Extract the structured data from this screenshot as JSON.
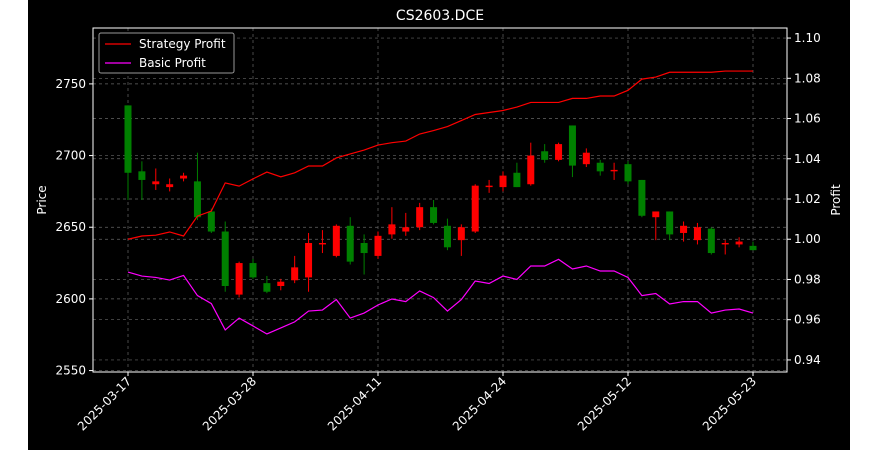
{
  "chart_data": {
    "type": "candlestick",
    "title": "CS2603.DCE",
    "y_label": "Price",
    "y2_label": "Profit",
    "categories": [
      "2025-03-17",
      null,
      null,
      null,
      null,
      null,
      null,
      null,
      null,
      "2025-03-28",
      null,
      null,
      null,
      null,
      null,
      null,
      null,
      null,
      "2025-04-11",
      null,
      null,
      null,
      null,
      null,
      null,
      null,
      null,
      "2025-04-24",
      null,
      null,
      null,
      null,
      null,
      null,
      null,
      null,
      "2025-05-12",
      null,
      null,
      null,
      null,
      null,
      null,
      null,
      null,
      "2025-05-23"
    ],
    "up_color": "#ff0000",
    "down_color": "#008000",
    "open": [
      2735,
      2689,
      2680,
      2678,
      2684,
      2682,
      2661,
      2647,
      2603,
      2625,
      2611,
      2609,
      2613,
      2615,
      2638,
      2630,
      2651,
      2639,
      2630,
      2645,
      2647,
      2650,
      2664,
      2651,
      2641,
      2647,
      2678,
      2678,
      2688,
      2680,
      2703,
      2697,
      2721,
      2694,
      2695,
      2689,
      2694,
      2683,
      2657,
      2661,
      2646,
      2641,
      2649,
      2638,
      2638,
      2637
    ],
    "high": [
      2735,
      2696,
      2691,
      2684,
      2688,
      2702,
      2663,
      2654,
      2626,
      2628,
      2616,
      2614,
      2630,
      2646,
      2648,
      2652,
      2657,
      2645,
      2647,
      2664,
      2660,
      2667,
      2669,
      2656,
      2652,
      2680,
      2683,
      2689,
      2695,
      2709,
      2708,
      2709,
      2721,
      2705,
      2697,
      2695,
      2696,
      2683,
      2661,
      2661,
      2654,
      2653,
      2650,
      2641,
      2643,
      2640
    ],
    "low": [
      2669,
      2669,
      2676,
      2675,
      2682,
      2655,
      2646,
      2605,
      2601,
      2614,
      2604,
      2606,
      2611,
      2605,
      2632,
      2629,
      2624,
      2617,
      2628,
      2642,
      2644,
      2648,
      2652,
      2634,
      2630,
      2646,
      2674,
      2675,
      2678,
      2679,
      2695,
      2696,
      2685,
      2692,
      2686,
      2683,
      2680,
      2657,
      2641,
      2641,
      2640,
      2638,
      2631,
      2631,
      2636,
      2634
    ],
    "close": [
      2688,
      2683,
      2682,
      2680,
      2686,
      2657,
      2647,
      2609,
      2625,
      2615,
      2605,
      2612,
      2622,
      2639,
      2639,
      2651,
      2626,
      2632,
      2644,
      2652,
      2650,
      2664,
      2653,
      2636,
      2650,
      2679,
      2679,
      2686,
      2678,
      2700,
      2697,
      2708,
      2693,
      2702,
      2689,
      2690,
      2682,
      2658,
      2661,
      2645,
      2651,
      2650,
      2632,
      2639,
      2640,
      2634
    ],
    "series": [
      {
        "name": "Strategy Profit",
        "color": "#ff0000",
        "axis": "y2",
        "values": [
          1.0,
          1.0016,
          1.002,
          1.0036,
          1.0016,
          1.0115,
          1.014,
          1.028,
          1.0264,
          1.03,
          1.0334,
          1.031,
          1.033,
          1.0364,
          1.0364,
          1.0404,
          1.0424,
          1.0443,
          1.0468,
          1.048,
          1.0488,
          1.0523,
          1.054,
          1.056,
          1.059,
          1.062,
          1.063,
          1.064,
          1.0657,
          1.068,
          1.068,
          1.068,
          1.07,
          1.07,
          1.0712,
          1.0712,
          1.074,
          1.0796,
          1.0806,
          1.083,
          1.083,
          1.083,
          1.083,
          1.0836,
          1.0836,
          1.0836
        ]
      },
      {
        "name": "Basic Profit",
        "color": "#ff00ff",
        "axis": "y2",
        "values": [
          0.9837,
          0.9817,
          0.981,
          0.9797,
          0.982,
          0.972,
          0.968,
          0.9549,
          0.9608,
          0.9569,
          0.9529,
          0.9559,
          0.9589,
          0.9643,
          0.9648,
          0.97,
          0.9608,
          0.9633,
          0.9673,
          0.9703,
          0.969,
          0.9743,
          0.971,
          0.9643,
          0.97,
          0.9792,
          0.978,
          0.9817,
          0.98,
          0.9867,
          0.9867,
          0.99,
          0.9852,
          0.9867,
          0.9842,
          0.9842,
          0.981,
          0.972,
          0.973,
          0.9678,
          0.969,
          0.969,
          0.9633,
          0.9648,
          0.9653,
          0.9633
        ]
      }
    ],
    "ylim": [
      2549,
      2789
    ],
    "yticks": [
      2550,
      2600,
      2650,
      2700,
      2750
    ],
    "y2lim": [
      0.934,
      1.105
    ],
    "y2ticks": [
      0.94,
      0.96,
      0.98,
      {
        "value": 1.0,
        "label": "1.00"
      },
      1.02,
      1.04,
      1.06,
      1.08,
      {
        "value": 1.1,
        "label": "1.10"
      }
    ],
    "grid": true,
    "legend": "upper left"
  }
}
